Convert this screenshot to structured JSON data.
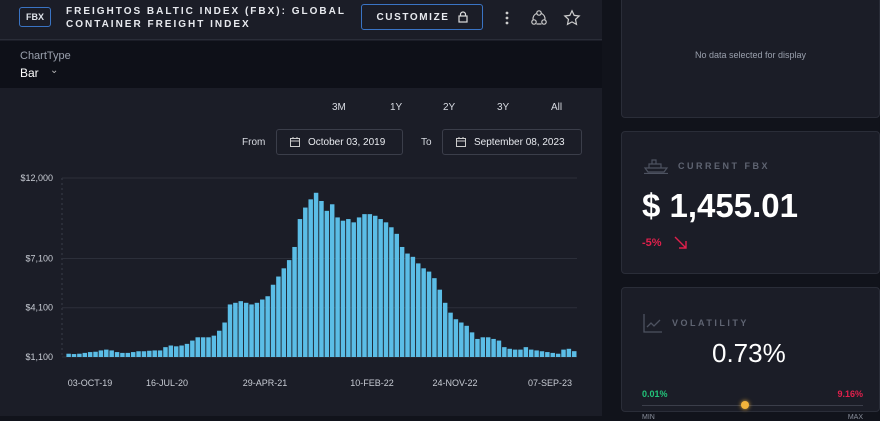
{
  "header": {
    "badge": "FBX",
    "title_line1": "FREIGHTOS BALTIC INDEX (FBX): GLOBAL",
    "title_line2": "CONTAINER FREIGHT INDEX",
    "customize_label": "CUSTOMIZE",
    "icons": [
      "lock-icon",
      "more-vertical-icon",
      "share-network-icon",
      "star-icon"
    ]
  },
  "chart_type": {
    "label": "ChartType",
    "value": "Bar"
  },
  "ranges": [
    "3M",
    "1Y",
    "2Y",
    "3Y",
    "All"
  ],
  "date_range": {
    "from_label": "From",
    "from": "October 03, 2019",
    "to_label": "To",
    "to": "September 08, 2023"
  },
  "colors": {
    "bar": "#5bbde6",
    "accent": "#3a74c4",
    "negative": "#e0204c",
    "positive": "#22c47a",
    "marker": "#f2b43c"
  },
  "chart_data": {
    "type": "bar",
    "y_ticks": [
      "$1,100",
      "$4,100",
      "$7,100",
      "$12,000"
    ],
    "y_tick_values": [
      1100,
      4100,
      7100,
      12000
    ],
    "ylim": [
      1100,
      12000
    ],
    "x_ticks": [
      "03-OCT-19",
      "16-JUL-20",
      "29-APR-21",
      "10-FEB-22",
      "24-NOV-22",
      "07-SEP-23"
    ],
    "x_range": [
      "2019-10-03",
      "2023-09-07"
    ],
    "grid": true,
    "values": [
      1300,
      1280,
      1300,
      1350,
      1400,
      1420,
      1500,
      1550,
      1500,
      1400,
      1350,
      1350,
      1400,
      1450,
      1450,
      1480,
      1500,
      1500,
      1700,
      1800,
      1750,
      1800,
      1900,
      2100,
      2300,
      2300,
      2300,
      2400,
      2700,
      3200,
      4300,
      4400,
      4500,
      4400,
      4300,
      4400,
      4600,
      4800,
      5500,
      6000,
      6500,
      7000,
      7800,
      9500,
      10200,
      10700,
      11100,
      10600,
      10000,
      10400,
      9600,
      9400,
      9500,
      9300,
      9600,
      9800,
      9800,
      9700,
      9500,
      9300,
      9000,
      8600,
      7800,
      7400,
      7200,
      6800,
      6500,
      6300,
      5900,
      5200,
      4400,
      3800,
      3400,
      3200,
      3000,
      2600,
      2200,
      2300,
      2300,
      2200,
      2100,
      1700,
      1600,
      1550,
      1550,
      1700,
      1550,
      1500,
      1450,
      1400,
      1350,
      1300,
      1550,
      1600,
      1455
    ]
  },
  "right": {
    "empty_message": "No data selected for display",
    "current": {
      "label": "CURRENT FBX",
      "value": "$ 1,455.01",
      "change": "-5%",
      "direction": "down"
    },
    "volatility": {
      "label": "VOLATILITY",
      "value": "0.73%",
      "min_value": "0.01%",
      "max_value": "9.16%",
      "min_label": "MIN",
      "max_label": "MAX",
      "position_fraction": 0.46
    }
  }
}
